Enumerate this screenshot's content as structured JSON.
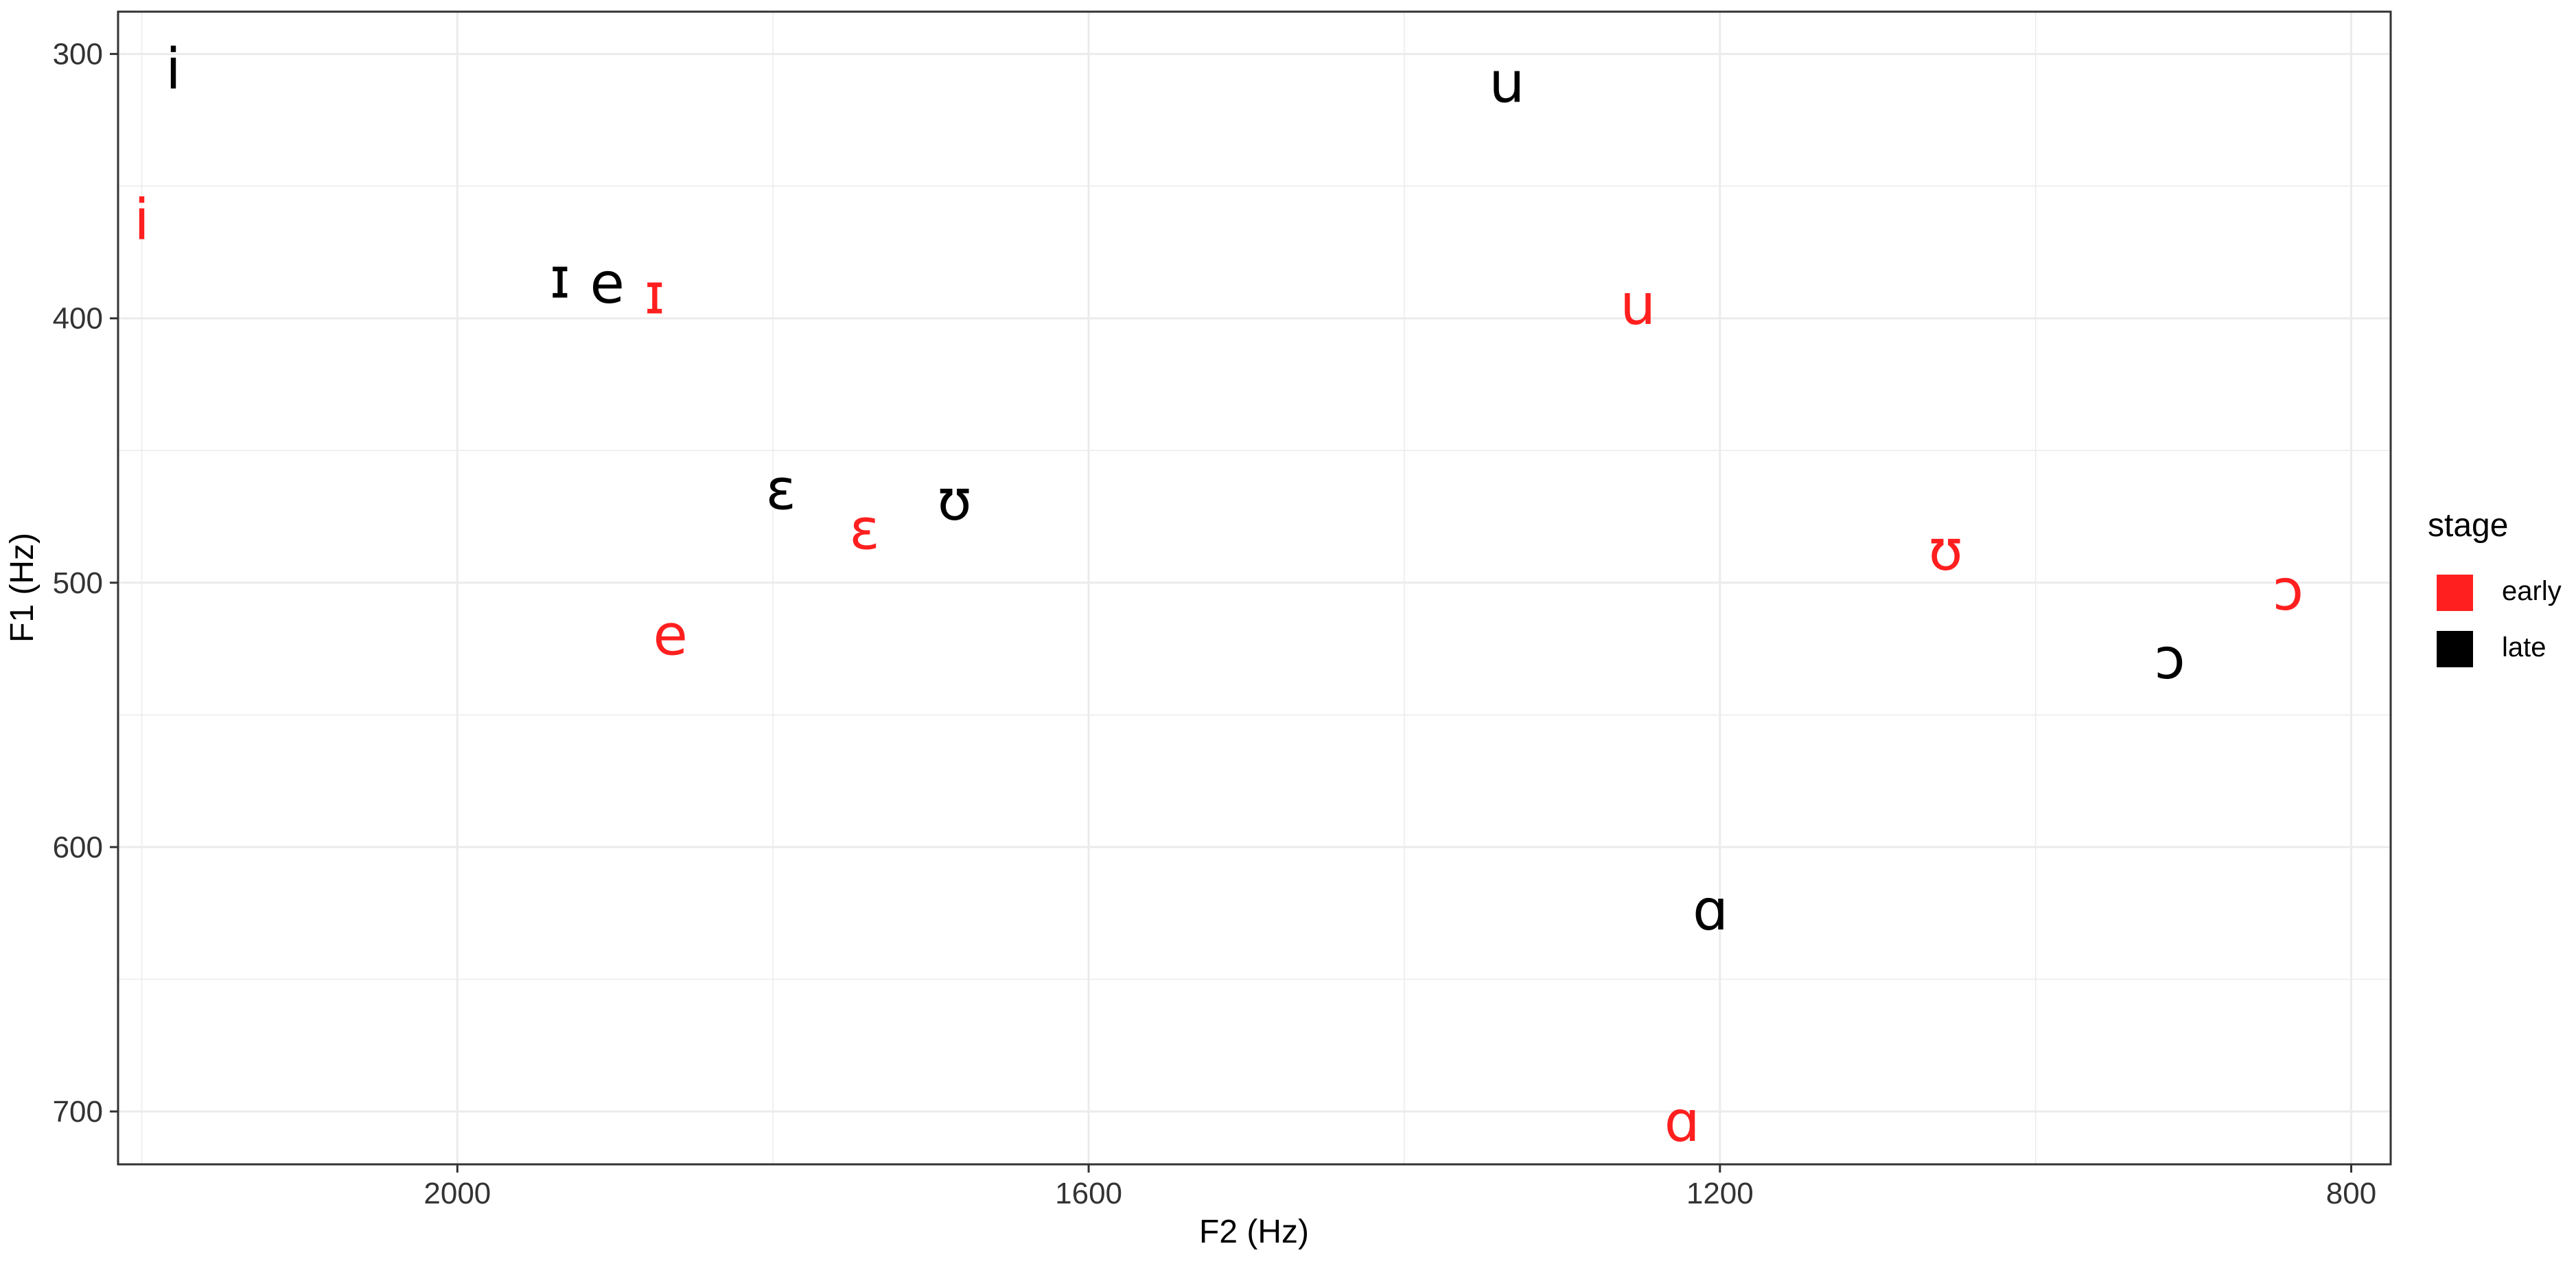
{
  "chart_data": {
    "type": "scatter",
    "xlabel": "F2 (Hz)",
    "ylabel": "F1 (Hz)",
    "x_reversed": true,
    "y_reversed": true,
    "xlim": [
      2215,
      775
    ],
    "ylim": [
      284,
      720
    ],
    "x_ticks": [
      2000,
      1600,
      1200,
      800
    ],
    "y_ticks": [
      300,
      400,
      500,
      600,
      700
    ],
    "grid": true,
    "legend": {
      "title": "stage",
      "position": "right",
      "entries": [
        {
          "label": "early",
          "color": "#ff1f1f"
        },
        {
          "label": "late",
          "color": "#000000"
        }
      ]
    },
    "series": [
      {
        "name": "early",
        "color": "#ff1f1f",
        "points": [
          {
            "label": "i",
            "x": 2200,
            "y": 363
          },
          {
            "label": "ɪ",
            "x": 1875,
            "y": 391
          },
          {
            "label": "e",
            "x": 1865,
            "y": 520
          },
          {
            "label": "ɛ",
            "x": 1742,
            "y": 480
          },
          {
            "label": "u",
            "x": 1252,
            "y": 395
          },
          {
            "label": "ʊ",
            "x": 1057,
            "y": 488
          },
          {
            "label": "ɔ",
            "x": 840,
            "y": 503
          },
          {
            "label": "ɑ",
            "x": 1224,
            "y": 704
          }
        ]
      },
      {
        "name": "late",
        "color": "#000000",
        "points": [
          {
            "label": "i",
            "x": 2180,
            "y": 306
          },
          {
            "label": "ɪ",
            "x": 1935,
            "y": 385
          },
          {
            "label": "e",
            "x": 1905,
            "y": 387
          },
          {
            "label": "ɛ",
            "x": 1795,
            "y": 465
          },
          {
            "label": "ʊ",
            "x": 1685,
            "y": 469
          },
          {
            "label": "u",
            "x": 1335,
            "y": 311
          },
          {
            "label": "ɔ",
            "x": 915,
            "y": 529
          },
          {
            "label": "ɑ",
            "x": 1206,
            "y": 624
          }
        ]
      }
    ]
  }
}
